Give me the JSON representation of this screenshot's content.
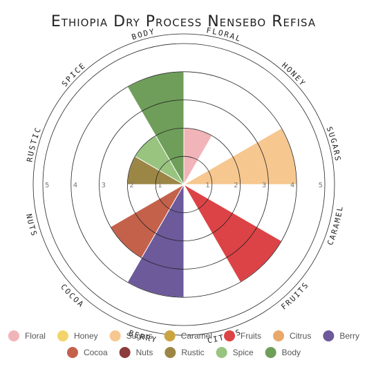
{
  "chart_data": {
    "type": "polar-area",
    "title": "Ethiopia Dry Process Nensebo Refisa",
    "radial_range": [
      0,
      5
    ],
    "radial_ticks": [
      "1",
      "2",
      "3",
      "4",
      "5"
    ],
    "grid": true,
    "legend_position": "bottom",
    "categories": [
      "Floral",
      "Honey",
      "Sugars",
      "Caramel",
      "Fruits",
      "Citrus",
      "Berry",
      "Cocoa",
      "Nuts",
      "Rustic",
      "Spice",
      "Body"
    ],
    "axis_labels": [
      "FLORAL",
      "HONEY",
      "SUGARS",
      "CARAMEL",
      "FRUITS",
      "CITRUS",
      "BERRY",
      "COCOA",
      "NUTS",
      "RUSTIC",
      "SPICE",
      "BODY"
    ],
    "values": [
      2,
      0,
      4,
      0,
      4,
      0,
      4,
      3,
      0,
      2,
      2,
      4
    ],
    "colors": [
      "#f1b4b8",
      "#f1d56a",
      "#f6c78f",
      "#c9a542",
      "#dc4346",
      "#e9a86a",
      "#6c5a9b",
      "#c4614b",
      "#8b3b3b",
      "#9b8645",
      "#98c47f",
      "#6f9e5a"
    ]
  }
}
